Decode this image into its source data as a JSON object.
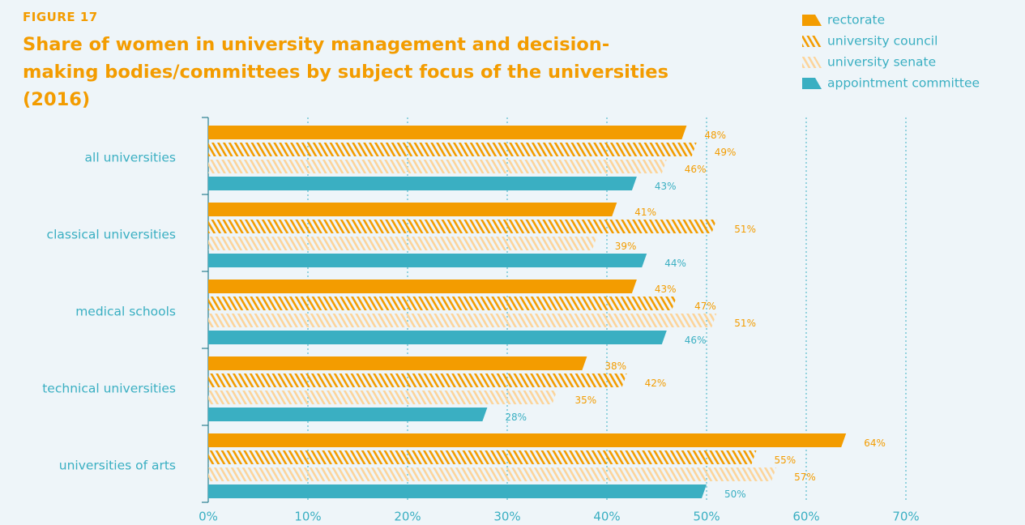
{
  "chart_data": {
    "type": "bar",
    "orientation": "horizontal",
    "figure_label": "FIGURE 17",
    "title": "Share of women in university management and decision-making bodies/committees by subject focus of the universities (2016)",
    "categories": [
      "all universities",
      "classical universities",
      "medical schools",
      "technical universities",
      "universities of arts"
    ],
    "series": [
      {
        "name": "rectorate",
        "color": "#f39c00",
        "fill": "solid",
        "label_color": "#f39c00",
        "values": [
          48,
          41,
          43,
          38,
          64
        ],
        "value_labels": [
          "48%",
          "41%",
          "43%",
          "38%",
          "64%"
        ]
      },
      {
        "name": "university council",
        "color": "#f39c00",
        "fill": "hatch",
        "label_color": "#f39c00",
        "values": [
          49,
          51,
          47,
          42,
          55
        ],
        "value_labels": [
          "49%",
          "51%",
          "47%",
          "42%",
          "55%"
        ]
      },
      {
        "name": "university senate",
        "color": "#fcd49a",
        "fill": "hatch",
        "label_color": "#f39c00",
        "values": [
          46,
          39,
          51,
          35,
          57
        ],
        "value_labels": [
          "46%",
          "39%",
          "51%",
          "35%",
          "57%"
        ]
      },
      {
        "name": "appointment committee",
        "color": "#3aafc2",
        "fill": "solid",
        "label_color": "#3aafc2",
        "values": [
          43,
          44,
          46,
          28,
          50
        ],
        "value_labels": [
          "43%",
          "44%",
          "46%",
          "28%",
          "50%"
        ]
      }
    ],
    "xlim": [
      0,
      70
    ],
    "xticks": [
      {
        "value": 0,
        "label": "0%"
      },
      {
        "value": 10,
        "label": "10%"
      },
      {
        "value": 20,
        "label": "20%"
      },
      {
        "value": 30,
        "label": "30%"
      },
      {
        "value": 40,
        "label": "40%"
      },
      {
        "value": 50,
        "label": "50%"
      },
      {
        "value": 60,
        "label": "60%"
      },
      {
        "value": 70,
        "label": "70%"
      }
    ],
    "grid": true,
    "legend": "top-right"
  }
}
